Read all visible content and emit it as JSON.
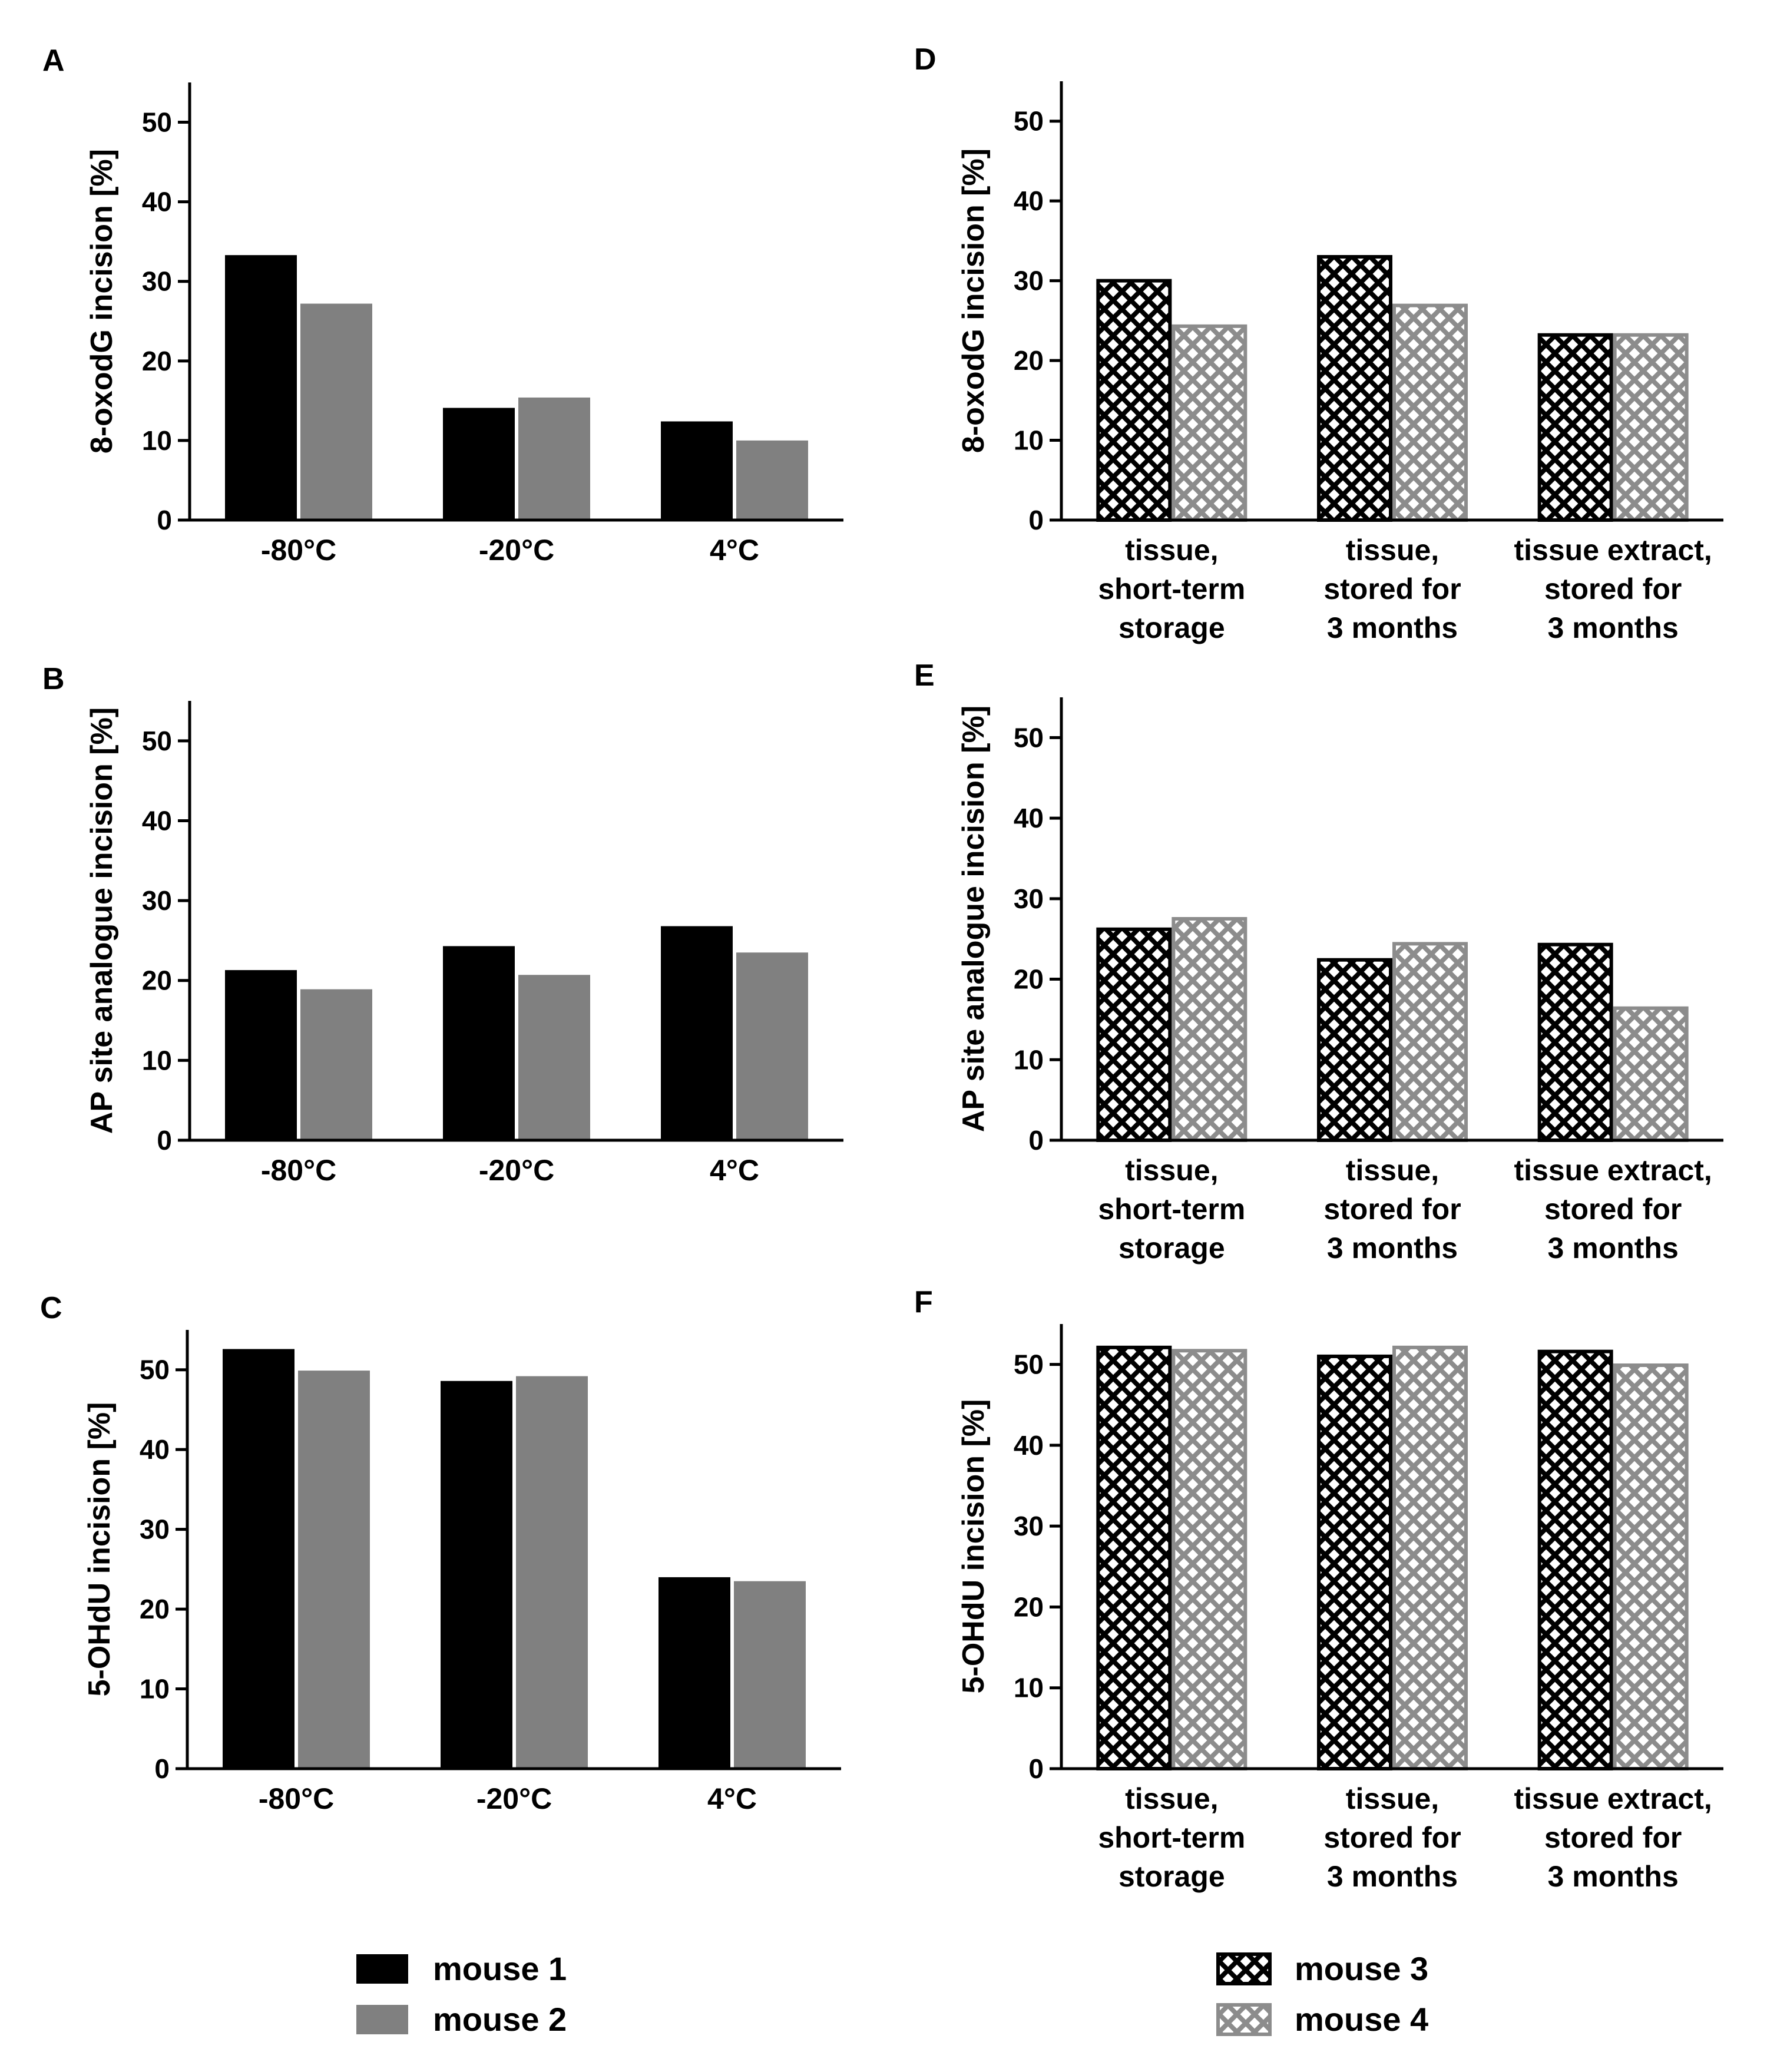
{
  "colors": {
    "mouse1": "#000000",
    "mouse2": "#808080",
    "mouse3": "#000000",
    "mouse4": "#8c8c8c",
    "axis": "#000000"
  },
  "legends": {
    "left": [
      {
        "label": "mouse 1",
        "style": "solid",
        "color": "#000000"
      },
      {
        "label": "mouse 2",
        "style": "solid",
        "color": "#808080"
      }
    ],
    "right": [
      {
        "label": "mouse 3",
        "style": "hatched",
        "color": "#000000"
      },
      {
        "label": "mouse 4",
        "style": "hatched",
        "color": "#8c8c8c"
      }
    ]
  },
  "chart_data": [
    {
      "panel": "A",
      "type": "bar",
      "style": "solid",
      "ylabel": "8-oxodG incision [%]",
      "ylim": [
        0,
        55
      ],
      "yticks": [
        0,
        10,
        20,
        30,
        40,
        50
      ],
      "categories": [
        [
          "-80°C"
        ],
        [
          "-20°C"
        ],
        [
          "4°C"
        ]
      ],
      "series": [
        {
          "name": "mouse 1",
          "values": [
            33.3,
            14.1,
            12.4
          ]
        },
        {
          "name": "mouse 2",
          "values": [
            27.2,
            15.4,
            10.0
          ]
        }
      ]
    },
    {
      "panel": "B",
      "type": "bar",
      "style": "solid",
      "ylabel": "AP site analogue incision [%]",
      "ylim": [
        0,
        55
      ],
      "yticks": [
        0,
        10,
        20,
        30,
        40,
        50
      ],
      "categories": [
        [
          "-80°C"
        ],
        [
          "-20°C"
        ],
        [
          "4°C"
        ]
      ],
      "series": [
        {
          "name": "mouse 1",
          "values": [
            21.3,
            24.3,
            26.8
          ]
        },
        {
          "name": "mouse 2",
          "values": [
            18.9,
            20.7,
            23.5
          ]
        }
      ]
    },
    {
      "panel": "C",
      "type": "bar",
      "style": "solid",
      "ylabel": "5-OHdU incision [%]",
      "ylim": [
        0,
        55
      ],
      "yticks": [
        0,
        10,
        20,
        30,
        40,
        50
      ],
      "categories": [
        [
          "-80°C"
        ],
        [
          "-20°C"
        ],
        [
          "4°C"
        ]
      ],
      "series": [
        {
          "name": "mouse 1",
          "values": [
            52.6,
            48.6,
            24.0
          ]
        },
        {
          "name": "mouse 2",
          "values": [
            49.9,
            49.2,
            23.5
          ]
        }
      ]
    },
    {
      "panel": "D",
      "type": "bar",
      "style": "hatched",
      "ylabel": "8-oxodG incision [%]",
      "ylim": [
        0,
        55
      ],
      "yticks": [
        0,
        10,
        20,
        30,
        40,
        50
      ],
      "categories": [
        [
          "tissue,",
          "short-term",
          "storage"
        ],
        [
          "tissue,",
          "stored for",
          "3 months"
        ],
        [
          "tissue extract,",
          "stored for",
          "3 months"
        ]
      ],
      "series": [
        {
          "name": "mouse 3",
          "values": [
            30.0,
            33.0,
            23.2
          ]
        },
        {
          "name": "mouse 4",
          "values": [
            24.3,
            26.9,
            23.2
          ]
        }
      ]
    },
    {
      "panel": "E",
      "type": "bar",
      "style": "hatched",
      "ylabel": "AP site analogue incision [%]",
      "ylim": [
        0,
        55
      ],
      "yticks": [
        0,
        10,
        20,
        30,
        40,
        50
      ],
      "categories": [
        [
          "tissue,",
          "short-term",
          "storage"
        ],
        [
          "tissue,",
          "stored for",
          "3 months"
        ],
        [
          "tissue extract,",
          "stored for",
          "3 months"
        ]
      ],
      "series": [
        {
          "name": "mouse 3",
          "values": [
            26.2,
            22.4,
            24.3
          ]
        },
        {
          "name": "mouse 4",
          "values": [
            27.5,
            24.4,
            16.4
          ]
        }
      ]
    },
    {
      "panel": "F",
      "type": "bar",
      "style": "hatched",
      "ylabel": "5-OHdU incision [%]",
      "ylim": [
        0,
        55
      ],
      "yticks": [
        0,
        10,
        20,
        30,
        40,
        50
      ],
      "categories": [
        [
          "tissue,",
          "short-term",
          "storage"
        ],
        [
          "tissue,",
          "stored for",
          "3 months"
        ],
        [
          "tissue extract,",
          "stored for",
          "3 months"
        ]
      ],
      "series": [
        {
          "name": "mouse 3",
          "values": [
            52.1,
            51.0,
            51.6
          ]
        },
        {
          "name": "mouse 4",
          "values": [
            51.7,
            52.1,
            49.9
          ]
        }
      ]
    }
  ]
}
